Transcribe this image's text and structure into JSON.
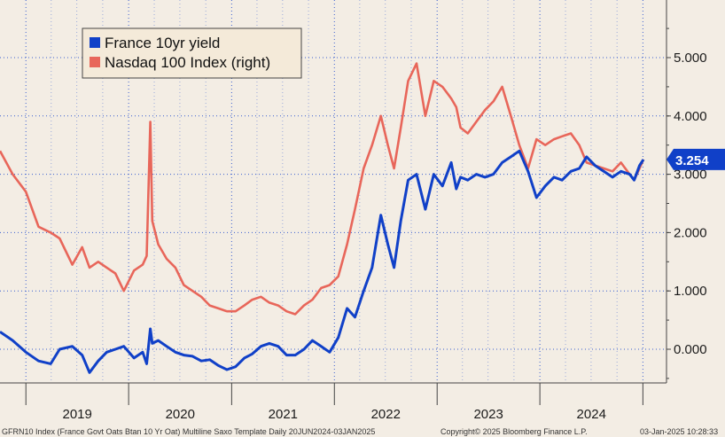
{
  "chart_data": {
    "type": "line",
    "series": [
      {
        "name": "France 10yr yield",
        "color": "#1040c8",
        "x": [
          "2018-10-01",
          "2018-11-15",
          "2019-01-01",
          "2019-02-15",
          "2019-03-30",
          "2019-05-01",
          "2019-06-15",
          "2019-07-20",
          "2019-08-15",
          "2019-09-15",
          "2019-10-15",
          "2019-11-15",
          "2019-12-15",
          "2020-01-20",
          "2020-02-20",
          "2020-03-05",
          "2020-03-18",
          "2020-03-25",
          "2020-04-15",
          "2020-05-15",
          "2020-06-15",
          "2020-07-15",
          "2020-08-15",
          "2020-09-15",
          "2020-10-15",
          "2020-11-15",
          "2020-12-15",
          "2021-01-15",
          "2021-02-15",
          "2021-03-15",
          "2021-04-15",
          "2021-05-15",
          "2021-06-15",
          "2021-07-15",
          "2021-08-15",
          "2021-09-15",
          "2021-10-15",
          "2021-11-15",
          "2021-12-15",
          "2022-01-15",
          "2022-02-15",
          "2022-03-15",
          "2022-04-15",
          "2022-05-15",
          "2022-06-15",
          "2022-07-10",
          "2022-08-01",
          "2022-08-25",
          "2022-09-20",
          "2022-10-20",
          "2022-11-20",
          "2022-12-20",
          "2023-01-20",
          "2023-02-20",
          "2023-03-10",
          "2023-03-25",
          "2023-04-20",
          "2023-05-20",
          "2023-06-20",
          "2023-07-20",
          "2023-08-20",
          "2023-09-20",
          "2023-10-20",
          "2023-11-20",
          "2023-12-20",
          "2024-01-20",
          "2024-02-20",
          "2024-03-20",
          "2024-04-20",
          "2024-05-20",
          "2024-06-15",
          "2024-07-15",
          "2024-08-15",
          "2024-09-15",
          "2024-10-15",
          "2024-11-15",
          "2024-12-01",
          "2024-12-20",
          "2025-01-03"
        ],
        "values": [
          0.3,
          0.15,
          -0.05,
          -0.2,
          -0.25,
          0.0,
          0.05,
          -0.1,
          -0.4,
          -0.2,
          -0.05,
          0.0,
          0.05,
          -0.15,
          -0.05,
          -0.25,
          0.35,
          0.1,
          0.15,
          0.05,
          -0.05,
          -0.1,
          -0.12,
          -0.2,
          -0.18,
          -0.28,
          -0.35,
          -0.3,
          -0.15,
          -0.08,
          0.05,
          0.1,
          0.05,
          -0.1,
          -0.1,
          0.0,
          0.15,
          0.05,
          -0.05,
          0.2,
          0.7,
          0.55,
          1.0,
          1.4,
          2.3,
          1.8,
          1.4,
          2.2,
          2.9,
          3.0,
          2.4,
          3.0,
          2.8,
          3.2,
          2.75,
          2.95,
          2.9,
          3.0,
          2.95,
          3.0,
          3.2,
          3.3,
          3.4,
          3.05,
          2.6,
          2.8,
          2.95,
          2.9,
          3.05,
          3.1,
          3.3,
          3.15,
          3.05,
          2.95,
          3.05,
          3.0,
          2.9,
          3.15,
          3.254
        ]
      },
      {
        "name": "Nasdaq 100 Index (right)",
        "color": "#e8665a",
        "x": [
          "2018-10-01",
          "2018-11-15",
          "2019-01-01",
          "2019-02-15",
          "2019-03-30",
          "2019-05-01",
          "2019-06-15",
          "2019-07-20",
          "2019-08-15",
          "2019-09-15",
          "2019-10-15",
          "2019-11-15",
          "2019-12-15",
          "2020-01-20",
          "2020-02-20",
          "2020-03-05",
          "2020-03-18",
          "2020-03-25",
          "2020-04-15",
          "2020-05-15",
          "2020-06-15",
          "2020-07-15",
          "2020-08-15",
          "2020-09-15",
          "2020-10-15",
          "2020-11-15",
          "2020-12-15",
          "2021-01-15",
          "2021-02-15",
          "2021-03-15",
          "2021-04-15",
          "2021-05-15",
          "2021-06-15",
          "2021-07-15",
          "2021-08-15",
          "2021-09-15",
          "2021-10-15",
          "2021-11-15",
          "2021-12-15",
          "2022-01-15",
          "2022-02-15",
          "2022-03-15",
          "2022-04-15",
          "2022-05-15",
          "2022-06-15",
          "2022-07-10",
          "2022-08-01",
          "2022-08-25",
          "2022-09-20",
          "2022-10-20",
          "2022-11-20",
          "2022-12-20",
          "2023-01-20",
          "2023-02-20",
          "2023-03-10",
          "2023-03-25",
          "2023-04-20",
          "2023-05-20",
          "2023-06-20",
          "2023-07-20",
          "2023-08-20",
          "2023-09-20",
          "2023-10-20",
          "2023-11-20",
          "2023-12-20",
          "2024-01-20",
          "2024-02-20",
          "2024-03-20",
          "2024-04-20",
          "2024-05-20",
          "2024-06-15",
          "2024-07-15",
          "2024-08-15",
          "2024-09-15",
          "2024-10-15",
          "2024-11-15",
          "2024-12-01",
          "2024-12-20",
          "2025-01-03"
        ],
        "values": [
          3.4,
          3.0,
          2.7,
          2.1,
          2.0,
          1.9,
          1.45,
          1.75,
          1.4,
          1.5,
          1.4,
          1.3,
          1.0,
          1.35,
          1.45,
          1.6,
          3.9,
          2.2,
          1.8,
          1.55,
          1.4,
          1.1,
          1.0,
          0.9,
          0.75,
          0.7,
          0.65,
          0.65,
          0.75,
          0.85,
          0.9,
          0.8,
          0.75,
          0.65,
          0.6,
          0.75,
          0.85,
          1.05,
          1.1,
          1.25,
          1.8,
          2.4,
          3.1,
          3.5,
          4.0,
          3.5,
          3.1,
          3.8,
          4.6,
          4.9,
          4.0,
          4.6,
          4.5,
          4.3,
          4.15,
          3.8,
          3.7,
          3.9,
          4.1,
          4.25,
          4.5,
          4.0,
          3.5,
          3.1,
          3.6,
          3.5,
          3.6,
          3.65,
          3.7,
          3.5,
          3.2,
          3.15,
          3.1,
          3.05,
          3.2,
          3.0,
          2.9,
          3.1,
          3.254
        ]
      }
    ],
    "y_right_ticks": [
      "5.000",
      "4.000",
      "3.000",
      "2.000",
      "1.000",
      "0.000"
    ],
    "ylim": [
      -0.6,
      5.5
    ],
    "x_tick_labels": [
      "2019",
      "2020",
      "2021",
      "2022",
      "2023",
      "2024"
    ],
    "x_range": [
      "2018-10-01",
      "2025-01-03"
    ],
    "last_value": "3.254",
    "legend_position": "top-left",
    "grid": true
  },
  "footer": {
    "left": "GFRN10 Index (France Govt Oats Btan 10 Yr Oat) Multiline Saxo Template  Daily 20JUN2024-03JAN2025",
    "center": "Copyright© 2025 Bloomberg Finance L.P.",
    "right": "03-Jan-2025 10:28:33"
  },
  "colors": {
    "background": "#f3ede4",
    "grid": "#3a5fd0",
    "axis": "#444444",
    "last_value_box": "#1040c8"
  }
}
